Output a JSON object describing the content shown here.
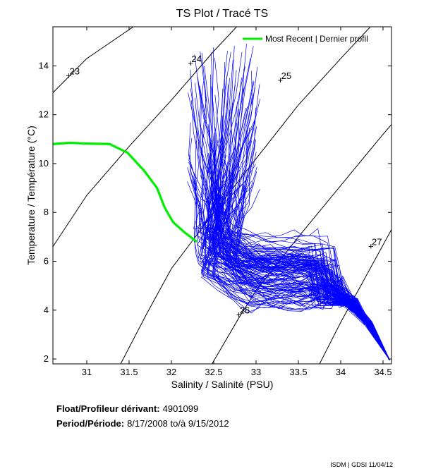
{
  "chart_data": {
    "type": "line",
    "title": "TS Plot / Tracé TS",
    "xlabel": "Salinity / Salinité (PSU)",
    "ylabel": "Temperature / Température (°C)",
    "xlim": [
      30.6,
      34.6
    ],
    "ylim": [
      1.8,
      15.6
    ],
    "xticks": [
      31,
      31.5,
      32,
      32.5,
      33,
      33.5,
      34,
      34.5
    ],
    "xtick_labels": [
      "31",
      "31.5",
      "32",
      "32.5",
      "33",
      "33.5",
      "34",
      "34.5"
    ],
    "yticks": [
      2,
      4,
      6,
      8,
      10,
      12,
      14
    ],
    "ytick_labels": [
      "2",
      "4",
      "6",
      "8",
      "10",
      "12",
      "14"
    ],
    "grid": false,
    "legend": {
      "position": "top-right",
      "entries": [
        {
          "label": "Most Recent | Dernier profil",
          "color": "#00ee00"
        }
      ]
    },
    "density_contours": [
      {
        "label": "23",
        "label_at": [
          30.78,
          13.6
        ],
        "points": [
          [
            30.6,
            12.9
          ],
          [
            31.0,
            14.3
          ],
          [
            31.55,
            15.6
          ]
        ]
      },
      {
        "label": "24",
        "label_at": [
          32.22,
          14.1
        ],
        "points": [
          [
            30.6,
            6.6
          ],
          [
            31.0,
            8.7
          ],
          [
            31.5,
            10.7
          ],
          [
            32.0,
            12.6
          ],
          [
            32.5,
            14.6
          ],
          [
            32.77,
            15.6
          ]
        ]
      },
      {
        "label": "25",
        "label_at": [
          33.28,
          13.4
        ],
        "points": [
          [
            31.4,
            1.8
          ],
          [
            31.7,
            3.8
          ],
          [
            32.0,
            5.7
          ],
          [
            32.5,
            8.0
          ],
          [
            33.0,
            10.2
          ],
          [
            33.5,
            12.4
          ],
          [
            34.0,
            14.3
          ],
          [
            34.35,
            15.6
          ]
        ]
      },
      {
        "label": "26",
        "label_at": [
          32.79,
          3.8
        ],
        "points": [
          [
            32.48,
            1.8
          ],
          [
            32.8,
            3.7
          ],
          [
            33.0,
            4.8
          ],
          [
            33.5,
            7.0
          ],
          [
            34.0,
            9.1
          ],
          [
            34.5,
            11.2
          ],
          [
            34.6,
            11.6
          ]
        ]
      },
      {
        "label": "27",
        "label_at": [
          34.35,
          6.6
        ],
        "points": [
          [
            33.75,
            1.8
          ],
          [
            34.0,
            3.5
          ],
          [
            34.3,
            5.4
          ],
          [
            34.6,
            7.3
          ]
        ]
      }
    ],
    "series": [
      {
        "name": "Most Recent | Dernier profil",
        "color": "#00ee00",
        "points": [
          [
            30.6,
            10.8
          ],
          [
            30.8,
            10.85
          ],
          [
            31.0,
            10.82
          ],
          [
            31.27,
            10.8
          ],
          [
            31.48,
            10.45
          ],
          [
            31.68,
            9.7
          ],
          [
            31.83,
            9.0
          ],
          [
            31.92,
            8.2
          ],
          [
            32.02,
            7.6
          ],
          [
            32.15,
            7.2
          ],
          [
            32.3,
            6.8
          ]
        ]
      }
    ],
    "historical_profiles": {
      "name": "All profiles",
      "color": "#0000ff",
      "count": 130
    }
  },
  "info": {
    "float_label": "Float/Profileur dérivant:",
    "float_value": "4901099",
    "period_label": "Period/Période:",
    "period_value": "8/17/2008  to/à  9/15/2012"
  },
  "footer": "ISDM | GDSI  11/04/12"
}
